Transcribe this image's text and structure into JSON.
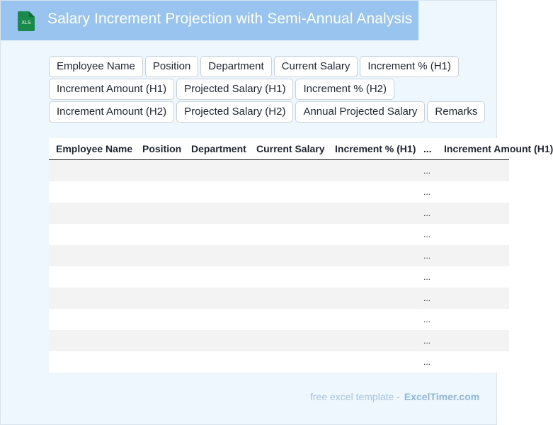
{
  "header": {
    "title": "Salary Increment Projection with Semi-Annual Analysis",
    "icon_label": "XLS",
    "icon_color": "#1a8a4a",
    "background": "#98c4ef"
  },
  "tags": {
    "rows": [
      [
        "Employee Name",
        "Position",
        "Department",
        "Current Salary",
        "Increment % (H1)"
      ],
      [
        "Increment Amount (H1)",
        "Projected Salary (H1)",
        "Increment % (H2)"
      ],
      [
        "Increment Amount (H2)",
        "Projected Salary (H2)",
        "Annual Projected Salary",
        "Remarks"
      ]
    ]
  },
  "table": {
    "columns": [
      "Employee Name",
      "Position",
      "Department",
      "Current Salary",
      "Increment % (H1)",
      "...",
      "Increment Amount (H1)"
    ],
    "ellipsis_cell": "...",
    "row_count": 10
  },
  "footer": {
    "text": "free excel template -",
    "brand": "ExcelTimer.com"
  }
}
